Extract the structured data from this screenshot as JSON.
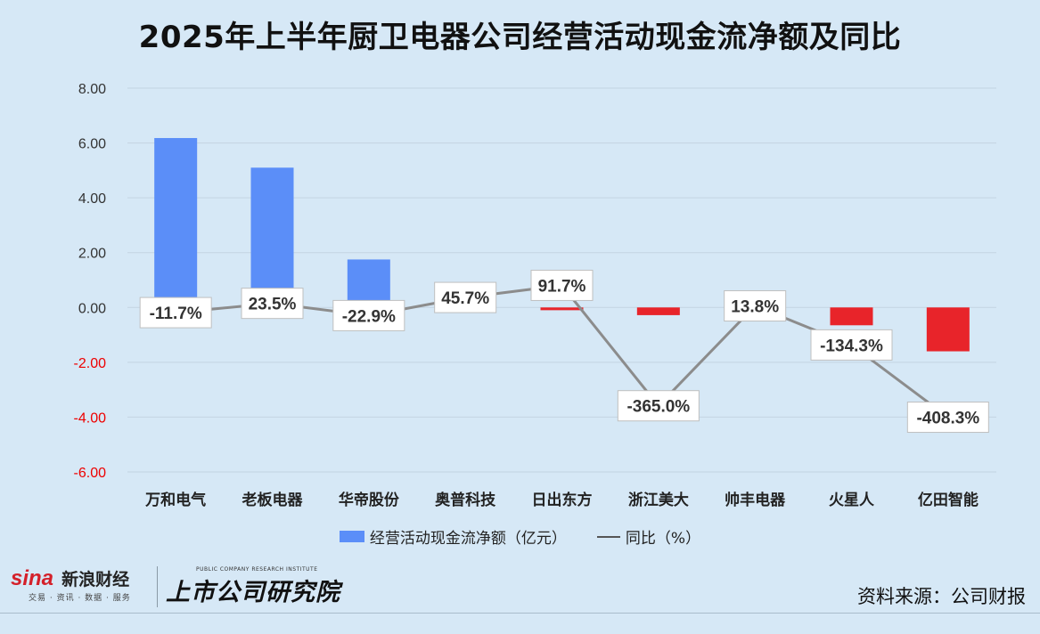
{
  "title": "2025年上半年厨卫电器公司经营活动现金流净额及同比",
  "source": "资料来源：公司财报",
  "colors": {
    "bar_positive": "#5b8ef8",
    "bar_negative": "#e8242a",
    "line": "#8c8c8c",
    "negative_tick": "#ee0000"
  },
  "logos": {
    "sina_main": "sina",
    "sina_cn": "新浪财经",
    "sina_sub": "交易 · 资讯 · 数据 · 服务",
    "institute_en": "PUBLIC COMPANY RESEARCH INSTITUTE",
    "institute_cn": "上市公司研究院"
  },
  "chart_data": {
    "type": "bar",
    "categories": [
      "万和电气",
      "老板电器",
      "华帝股份",
      "奥普科技",
      "日出东方",
      "浙江美大",
      "帅丰电器",
      "火星人",
      "亿田智能"
    ],
    "ylim": [
      -6,
      8
    ],
    "yticks": [
      "8.00",
      "6.00",
      "4.00",
      "2.00",
      "0.00",
      "-2.00",
      "-4.00",
      "-6.00"
    ],
    "grid": true,
    "legend_position": "bottom",
    "series": [
      {
        "name": "经营活动现金流净额（亿元）",
        "kind": "bar",
        "values": [
          6.18,
          5.1,
          1.75,
          0.0,
          -0.1,
          -0.28,
          0.0,
          -0.65,
          -1.6
        ]
      },
      {
        "name": "同比（%）",
        "kind": "line",
        "values": [
          -11.7,
          23.5,
          -22.9,
          45.7,
          91.7,
          -365.0,
          13.8,
          -134.3,
          -408.3
        ],
        "labels": [
          "-11.7%",
          "23.5%",
          "-22.9%",
          "45.7%",
          "91.7%",
          "-365.0%",
          "13.8%",
          "-134.3%",
          "-408.3%"
        ]
      }
    ]
  }
}
